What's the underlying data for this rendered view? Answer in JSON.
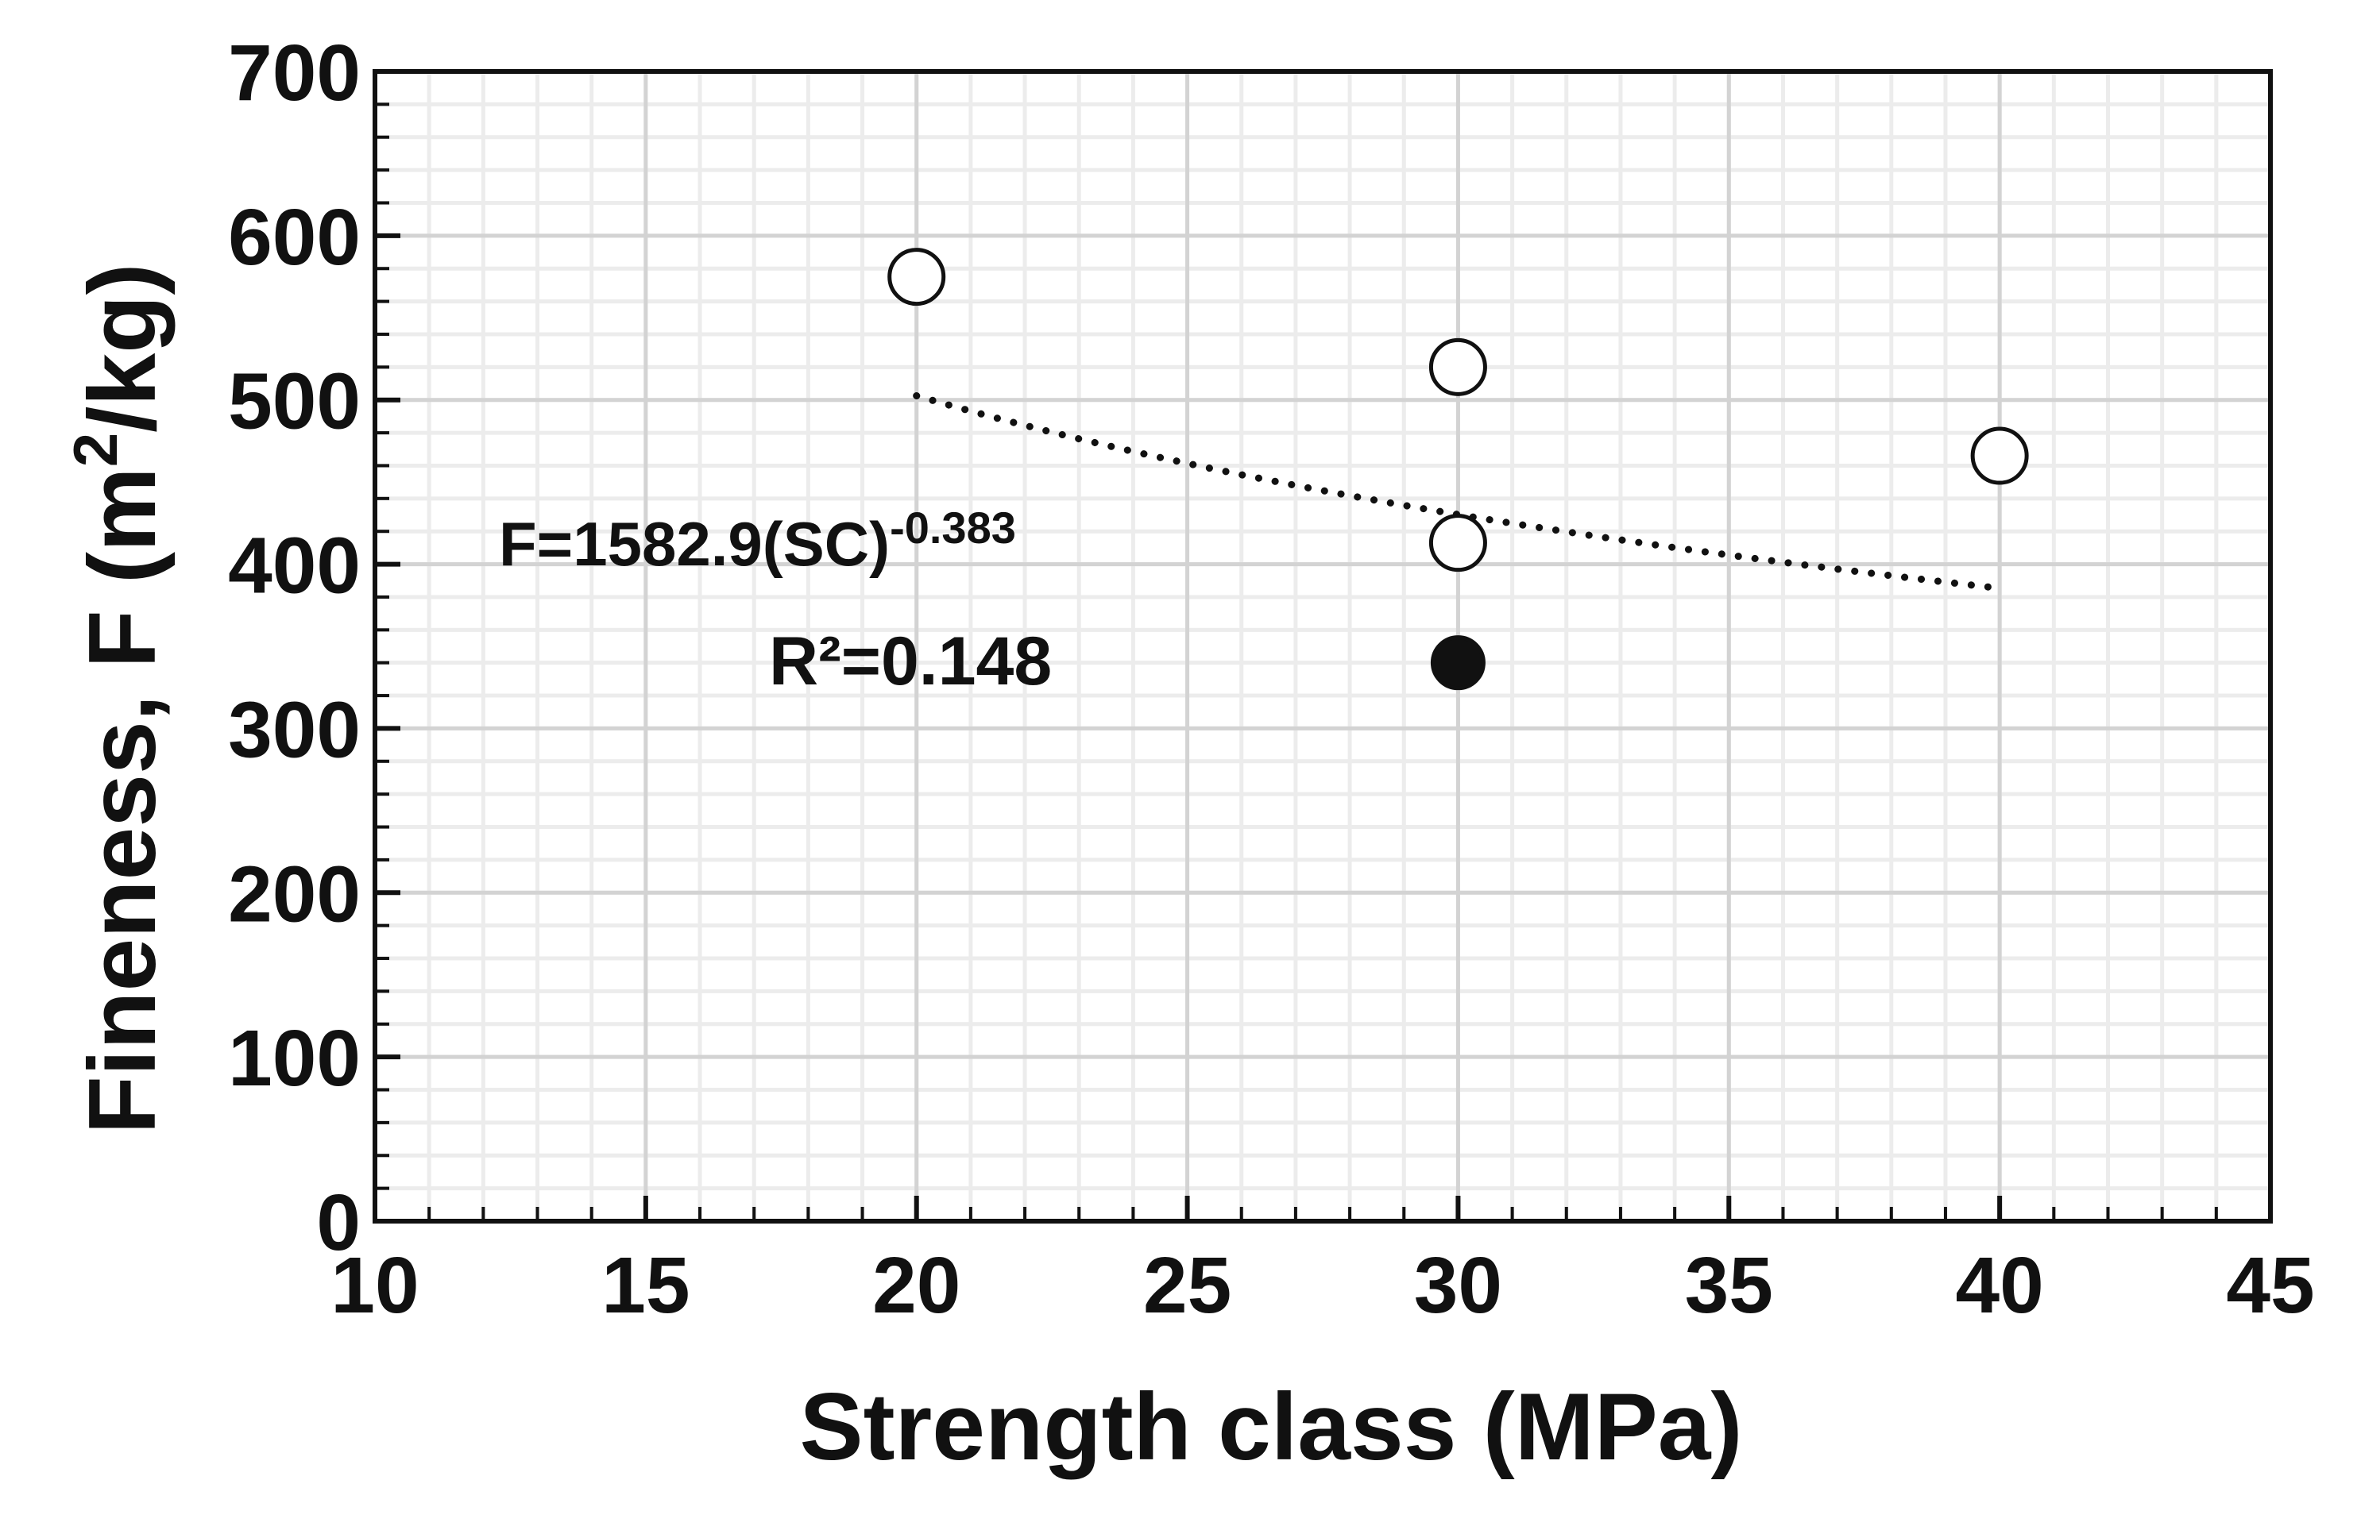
{
  "chart_data": {
    "type": "scatter",
    "xlabel": "Strength class (MPa)",
    "ylabel": {
      "main": "Fineness, F (m",
      "sup": "2",
      "end": "/kg)"
    },
    "xlim": [
      10,
      45
    ],
    "ylim": [
      0,
      700
    ],
    "x_ticks": [
      10,
      15,
      20,
      25,
      30,
      35,
      40,
      45
    ],
    "y_ticks": [
      0,
      100,
      200,
      300,
      400,
      500,
      600,
      700
    ],
    "grid": true,
    "series": [
      {
        "marker": "open-circle",
        "points": [
          {
            "x": 20,
            "y": 575
          },
          {
            "x": 30,
            "y": 520
          },
          {
            "x": 30,
            "y": 413
          },
          {
            "x": 40,
            "y": 466
          }
        ]
      },
      {
        "marker": "filled-circle",
        "points": [
          {
            "x": 30,
            "y": 340
          }
        ]
      }
    ],
    "trendline": {
      "style": "dotted",
      "model": "power",
      "coefficient": 1582.9,
      "exponent": -0.383,
      "x_range": [
        20,
        40
      ]
    },
    "annotations": {
      "equation_main": "F=1582.9(SC)",
      "equation_exp": "-0.383",
      "r_squared": "R²=0.148"
    }
  }
}
